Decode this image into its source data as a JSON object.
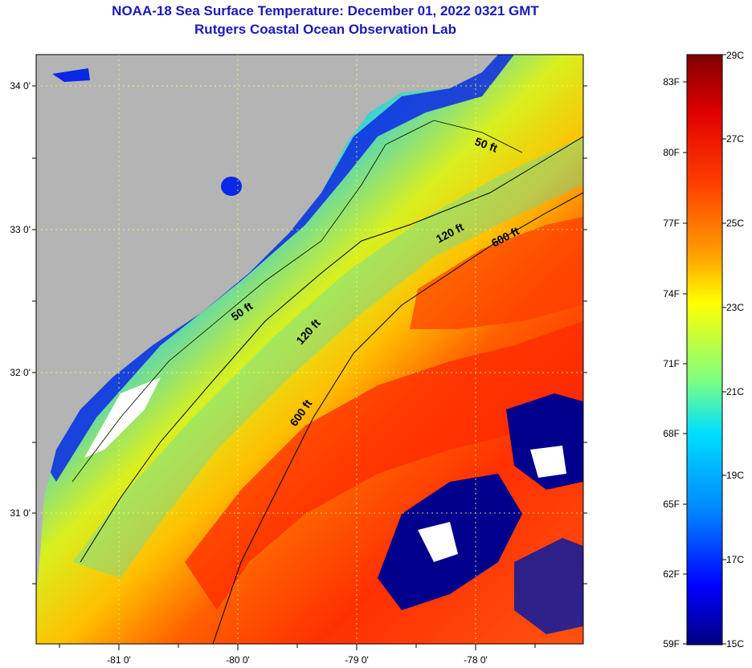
{
  "header": {
    "title": "NOAA-18 Sea Surface Temperature:  December 01, 2022 0321 GMT",
    "subtitle": "Rutgers Coastal Ocean Observation Lab"
  },
  "map": {
    "lat_labels": [
      "34 0'",
      "33 0'",
      "32 0'",
      "31 0'"
    ],
    "lon_labels": [
      "-81 0'",
      "-80 0'",
      "-79 0'",
      "-78 0'"
    ],
    "contour_labels": [
      "50 ft",
      "120 ft",
      "600 ft",
      "50 ft",
      "120 ft",
      "600 ft"
    ],
    "colors": {
      "land": "#b4b4b4",
      "cold": "#00008c",
      "warm": "#ff2a00"
    }
  },
  "colorbar": {
    "fahrenheit_labels": [
      "83F",
      "80F",
      "77F",
      "74F",
      "71F",
      "68F",
      "65F",
      "62F",
      "59F"
    ],
    "celsius_labels": [
      "29C",
      "27C",
      "25C",
      "23C",
      "21C",
      "19C",
      "17C",
      "15C"
    ],
    "range_f": [
      59,
      84
    ],
    "range_c": [
      15,
      29
    ]
  }
}
